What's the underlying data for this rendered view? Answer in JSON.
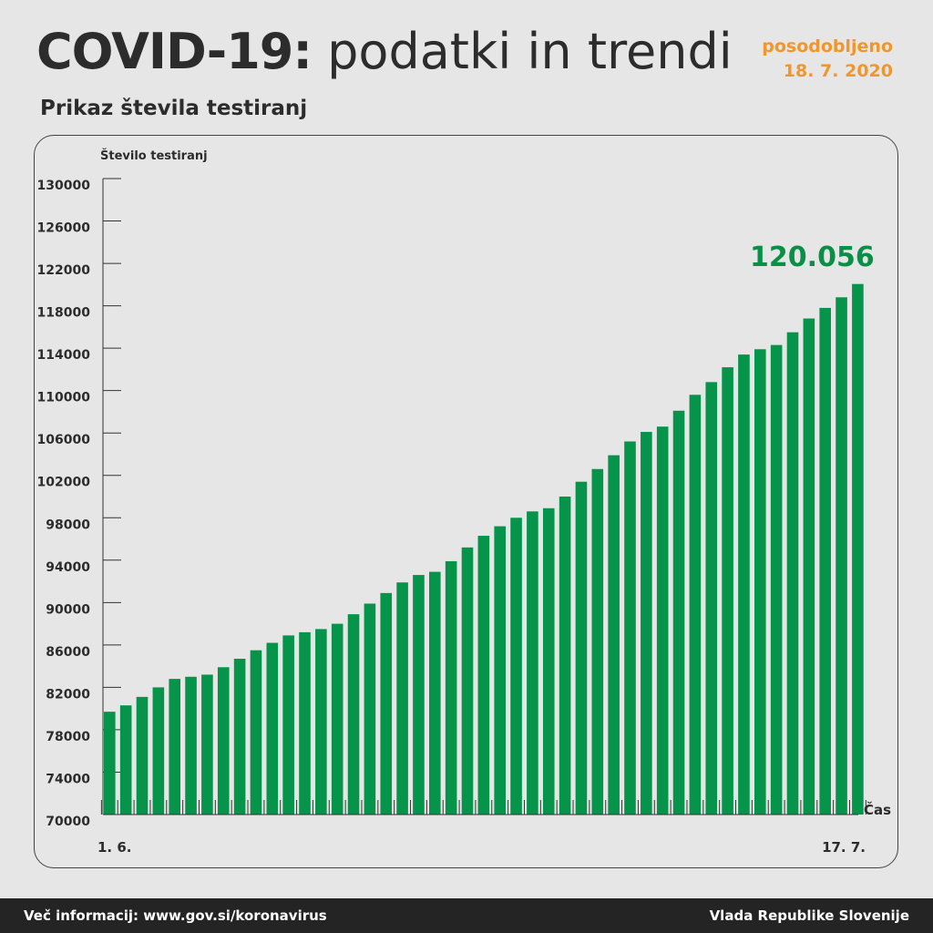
{
  "header": {
    "title_bold": "COVID-19:",
    "title_light": "podatki in trendi",
    "updated_label": "posodobljeno",
    "updated_date": "18. 7. 2020",
    "subtitle": "Prikaz števila testiranj"
  },
  "footer": {
    "left": "Več informacij: www.gov.si/koronavirus",
    "right": "Vlada Republike Slovenije"
  },
  "colors": {
    "bar": "#05944a",
    "callout": "#0a8f46",
    "accent": "#f0962a",
    "text": "#2c2c2c"
  },
  "chart_data": {
    "type": "bar",
    "ylabel": "Število testiranj",
    "xlabel": "Čas",
    "ylim": [
      70000,
      130000
    ],
    "yticks": [
      70000,
      74000,
      78000,
      82000,
      86000,
      90000,
      94000,
      98000,
      102000,
      106000,
      110000,
      114000,
      118000,
      122000,
      126000,
      130000
    ],
    "x_start_label": "1. 6.",
    "x_end_label": "17. 7.",
    "last_value_label": "120.056",
    "grid": false,
    "values": [
      79700,
      80300,
      81100,
      82000,
      82800,
      83000,
      83200,
      83900,
      84700,
      85500,
      86200,
      86900,
      87200,
      87500,
      88000,
      88900,
      89900,
      90900,
      91900,
      92600,
      92900,
      93900,
      95200,
      96300,
      97200,
      98000,
      98600,
      98900,
      100000,
      101400,
      102600,
      103900,
      105200,
      106100,
      106600,
      108100,
      109600,
      110800,
      112200,
      113400,
      113900,
      114300,
      115500,
      116800,
      117800,
      118800,
      120056
    ]
  }
}
